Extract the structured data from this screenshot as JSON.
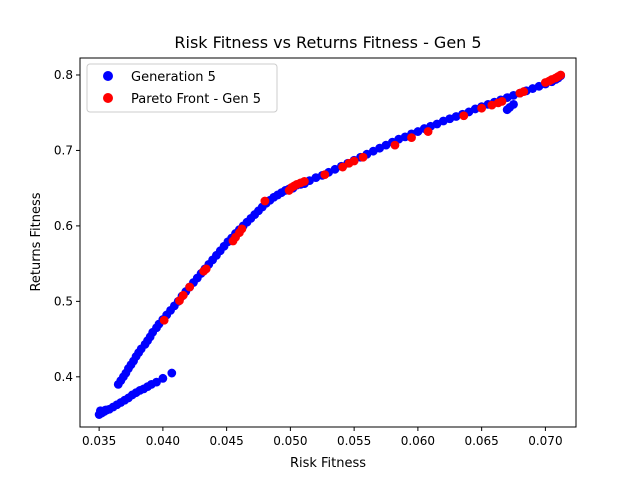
{
  "chart_data": {
    "type": "scatter",
    "title": "Risk Fitness vs Returns Fitness - Gen 5",
    "xlabel": "Risk Fitness",
    "ylabel": "Returns Fitness",
    "xlim": [
      0.0335,
      0.0724
    ],
    "ylim": [
      0.3335,
      0.8225
    ],
    "xticks": [
      0.035,
      0.04,
      0.045,
      0.05,
      0.055,
      0.06,
      0.065,
      0.07
    ],
    "xtick_labels": [
      "0.035",
      "0.040",
      "0.045",
      "0.050",
      "0.055",
      "0.060",
      "0.065",
      "0.070"
    ],
    "yticks": [
      0.4,
      0.5,
      0.6,
      0.7,
      0.8
    ],
    "ytick_labels": [
      "0.4",
      "0.5",
      "0.6",
      "0.7",
      "0.8"
    ],
    "grid": false,
    "legend_position": "top-left",
    "series": [
      {
        "name": "Generation 5",
        "color": "#0000ff",
        "points": [
          [
            0.035,
            0.35
          ],
          [
            0.0352,
            0.352
          ],
          [
            0.0354,
            0.354
          ],
          [
            0.0356,
            0.356
          ],
          [
            0.0358,
            0.357
          ],
          [
            0.0361,
            0.36
          ],
          [
            0.0364,
            0.363
          ],
          [
            0.0367,
            0.366
          ],
          [
            0.037,
            0.369
          ],
          [
            0.0373,
            0.372
          ],
          [
            0.0376,
            0.376
          ],
          [
            0.0379,
            0.379
          ],
          [
            0.0382,
            0.382
          ],
          [
            0.0385,
            0.384
          ],
          [
            0.0388,
            0.387
          ],
          [
            0.0391,
            0.39
          ],
          [
            0.0395,
            0.393
          ],
          [
            0.04,
            0.398
          ],
          [
            0.0407,
            0.405
          ],
          [
            0.0351,
            0.355
          ],
          [
            0.0355,
            0.356
          ],
          [
            0.0365,
            0.39
          ],
          [
            0.0367,
            0.395
          ],
          [
            0.0369,
            0.4
          ],
          [
            0.0371,
            0.405
          ],
          [
            0.0373,
            0.411
          ],
          [
            0.0375,
            0.416
          ],
          [
            0.0377,
            0.421
          ],
          [
            0.0379,
            0.427
          ],
          [
            0.0381,
            0.432
          ],
          [
            0.0383,
            0.437
          ],
          [
            0.0386,
            0.443
          ],
          [
            0.0388,
            0.448
          ],
          [
            0.039,
            0.453
          ],
          [
            0.0392,
            0.459
          ],
          [
            0.0395,
            0.465
          ],
          [
            0.0397,
            0.47
          ],
          [
            0.04,
            0.476
          ],
          [
            0.0403,
            0.482
          ],
          [
            0.0406,
            0.488
          ],
          [
            0.0409,
            0.494
          ],
          [
            0.0412,
            0.5
          ],
          [
            0.0415,
            0.507
          ],
          [
            0.0418,
            0.513
          ],
          [
            0.0421,
            0.519
          ],
          [
            0.0424,
            0.525
          ],
          [
            0.0427,
            0.531
          ],
          [
            0.043,
            0.537
          ],
          [
            0.0433,
            0.543
          ],
          [
            0.0436,
            0.549
          ],
          [
            0.0439,
            0.555
          ],
          [
            0.0442,
            0.561
          ],
          [
            0.0445,
            0.567
          ],
          [
            0.0448,
            0.573
          ],
          [
            0.0451,
            0.579
          ],
          [
            0.0454,
            0.584
          ],
          [
            0.0457,
            0.59
          ],
          [
            0.046,
            0.595
          ],
          [
            0.0463,
            0.6
          ],
          [
            0.0466,
            0.605
          ],
          [
            0.0469,
            0.61
          ],
          [
            0.0472,
            0.615
          ],
          [
            0.0475,
            0.62
          ],
          [
            0.0478,
            0.625
          ],
          [
            0.0481,
            0.63
          ],
          [
            0.0484,
            0.634
          ],
          [
            0.0487,
            0.638
          ],
          [
            0.049,
            0.641
          ],
          [
            0.0493,
            0.644
          ],
          [
            0.0496,
            0.647
          ],
          [
            0.0499,
            0.649
          ],
          [
            0.0502,
            0.65
          ],
          [
            0.0505,
            0.654
          ],
          [
            0.0508,
            0.655
          ],
          [
            0.0511,
            0.656
          ],
          [
            0.0515,
            0.66
          ],
          [
            0.052,
            0.664
          ],
          [
            0.0525,
            0.667
          ],
          [
            0.053,
            0.671
          ],
          [
            0.0535,
            0.675
          ],
          [
            0.054,
            0.679
          ],
          [
            0.0545,
            0.683
          ],
          [
            0.055,
            0.687
          ],
          [
            0.0555,
            0.691
          ],
          [
            0.056,
            0.695
          ],
          [
            0.0565,
            0.699
          ],
          [
            0.057,
            0.703
          ],
          [
            0.0575,
            0.707
          ],
          [
            0.058,
            0.711
          ],
          [
            0.0585,
            0.715
          ],
          [
            0.059,
            0.718
          ],
          [
            0.0595,
            0.722
          ],
          [
            0.06,
            0.725
          ],
          [
            0.0605,
            0.729
          ],
          [
            0.061,
            0.732
          ],
          [
            0.0615,
            0.735
          ],
          [
            0.062,
            0.739
          ],
          [
            0.0625,
            0.742
          ],
          [
            0.063,
            0.745
          ],
          [
            0.0635,
            0.748
          ],
          [
            0.064,
            0.751
          ],
          [
            0.0645,
            0.755
          ],
          [
            0.065,
            0.758
          ],
          [
            0.0655,
            0.761
          ],
          [
            0.066,
            0.764
          ],
          [
            0.0665,
            0.767
          ],
          [
            0.067,
            0.754
          ],
          [
            0.0672,
            0.757
          ],
          [
            0.0675,
            0.761
          ],
          [
            0.067,
            0.77
          ],
          [
            0.0675,
            0.773
          ],
          [
            0.068,
            0.776
          ],
          [
            0.0685,
            0.779
          ],
          [
            0.069,
            0.782
          ],
          [
            0.0695,
            0.785
          ],
          [
            0.07,
            0.788
          ],
          [
            0.0705,
            0.791
          ],
          [
            0.0708,
            0.794
          ],
          [
            0.071,
            0.796
          ],
          [
            0.0712,
            0.799
          ]
        ]
      },
      {
        "name": "Pareto Front - Gen 5",
        "color": "#ff0000",
        "points": [
          [
            0.0401,
            0.475
          ],
          [
            0.0413,
            0.501
          ],
          [
            0.0416,
            0.508
          ],
          [
            0.0421,
            0.519
          ],
          [
            0.0432,
            0.54
          ],
          [
            0.0434,
            0.543
          ],
          [
            0.0455,
            0.58
          ],
          [
            0.0457,
            0.585
          ],
          [
            0.046,
            0.591
          ],
          [
            0.0462,
            0.596
          ],
          [
            0.048,
            0.633
          ],
          [
            0.0499,
            0.647
          ],
          [
            0.0501,
            0.651
          ],
          [
            0.0503,
            0.653
          ],
          [
            0.0505,
            0.655
          ],
          [
            0.0508,
            0.657
          ],
          [
            0.0511,
            0.659
          ],
          [
            0.0527,
            0.668
          ],
          [
            0.0541,
            0.678
          ],
          [
            0.0546,
            0.683
          ],
          [
            0.055,
            0.686
          ],
          [
            0.0557,
            0.691
          ],
          [
            0.0582,
            0.707
          ],
          [
            0.0595,
            0.717
          ],
          [
            0.0608,
            0.725
          ],
          [
            0.0636,
            0.746
          ],
          [
            0.065,
            0.756
          ],
          [
            0.0658,
            0.76
          ],
          [
            0.0663,
            0.763
          ],
          [
            0.0666,
            0.765
          ],
          [
            0.068,
            0.776
          ],
          [
            0.0683,
            0.778
          ],
          [
            0.07,
            0.79
          ],
          [
            0.0703,
            0.792
          ],
          [
            0.0705,
            0.794
          ],
          [
            0.0708,
            0.796
          ],
          [
            0.071,
            0.798
          ],
          [
            0.0712,
            0.8
          ]
        ]
      }
    ]
  }
}
